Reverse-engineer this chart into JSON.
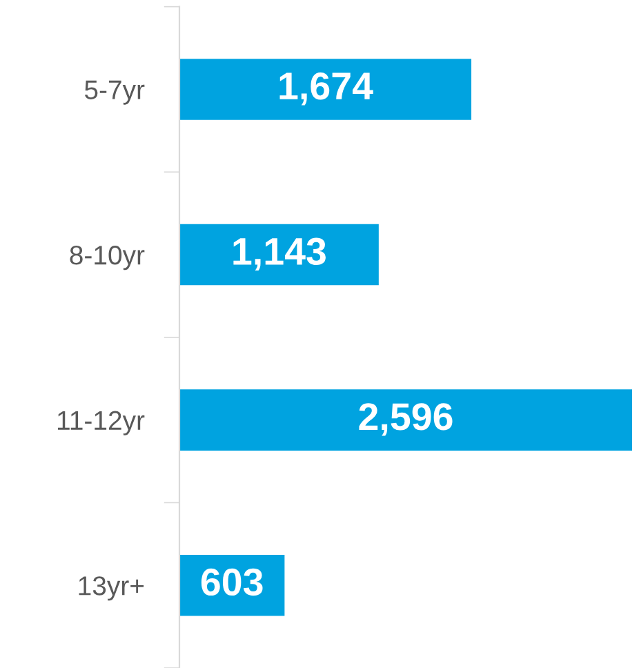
{
  "chart_data": {
    "type": "bar",
    "orientation": "horizontal",
    "categories": [
      "5-7yr",
      "8-10yr",
      "11-12yr",
      "13yr+"
    ],
    "values": [
      1674,
      1143,
      2596,
      603
    ],
    "value_labels": [
      "1,674",
      "1,143",
      "2,596",
      "603"
    ],
    "color": "#00a3e0",
    "grid": false,
    "legend": false,
    "tick_labels": "y"
  }
}
